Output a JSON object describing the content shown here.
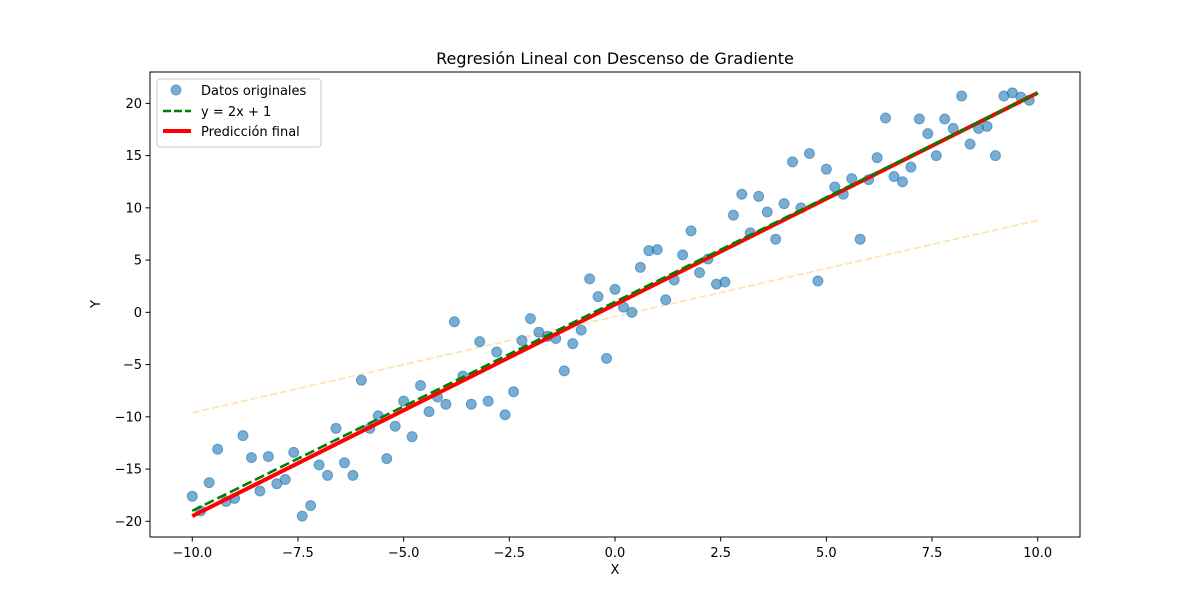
{
  "chart_data": {
    "type": "scatter",
    "title": "Regresión Lineal con Descenso de Gradiente",
    "xlabel": "X",
    "ylabel": "Y",
    "xlim": [
      -11.0,
      11.0
    ],
    "ylim": [
      -21.5,
      23.0
    ],
    "xticks": [
      -10.0,
      -7.5,
      -5.0,
      -2.5,
      0.0,
      2.5,
      5.0,
      7.5,
      10.0
    ],
    "xtick_labels": [
      "−10.0",
      "−7.5",
      "−5.0",
      "−2.5",
      "0.0",
      "2.5",
      "5.0",
      "7.5",
      "10.0"
    ],
    "yticks": [
      -20,
      -15,
      -10,
      -5,
      0,
      5,
      10,
      15,
      20
    ],
    "ytick_labels": [
      "−20",
      "−15",
      "−10",
      "−5",
      "0",
      "5",
      "10",
      "15",
      "20"
    ],
    "grid": false,
    "legend_position": "top-left",
    "colors": {
      "scatter": "#1f77b4",
      "true_line": "#007f00",
      "final_line": "#ff0000",
      "intermediate_line": "#ffa500"
    },
    "series": [
      {
        "name": "Datos originales",
        "kind": "scatter",
        "points": [
          [
            -10.0,
            -17.6
          ],
          [
            -9.8,
            -19.0
          ],
          [
            -9.6,
            -16.3
          ],
          [
            -9.4,
            -13.1
          ],
          [
            -9.2,
            -18.1
          ],
          [
            -9.0,
            -17.8
          ],
          [
            -8.8,
            -11.8
          ],
          [
            -8.6,
            -13.9
          ],
          [
            -8.4,
            -17.1
          ],
          [
            -8.2,
            -13.8
          ],
          [
            -8.0,
            -16.4
          ],
          [
            -7.8,
            -16.0
          ],
          [
            -7.6,
            -13.4
          ],
          [
            -7.4,
            -19.5
          ],
          [
            -7.2,
            -18.5
          ],
          [
            -7.0,
            -14.6
          ],
          [
            -6.8,
            -15.6
          ],
          [
            -6.6,
            -11.1
          ],
          [
            -6.4,
            -14.4
          ],
          [
            -6.2,
            -15.6
          ],
          [
            -6.0,
            -6.5
          ],
          [
            -5.8,
            -11.1
          ],
          [
            -5.6,
            -9.9
          ],
          [
            -5.4,
            -14.0
          ],
          [
            -5.2,
            -10.9
          ],
          [
            -5.0,
            -8.5
          ],
          [
            -4.8,
            -11.9
          ],
          [
            -4.6,
            -7.0
          ],
          [
            -4.4,
            -9.5
          ],
          [
            -4.2,
            -8.1
          ],
          [
            -4.0,
            -8.8
          ],
          [
            -3.8,
            -0.9
          ],
          [
            -3.6,
            -6.1
          ],
          [
            -3.4,
            -8.8
          ],
          [
            -3.2,
            -2.8
          ],
          [
            -3.0,
            -8.5
          ],
          [
            -2.8,
            -3.8
          ],
          [
            -2.6,
            -9.8
          ],
          [
            -2.4,
            -7.6
          ],
          [
            -2.2,
            -2.7
          ],
          [
            -2.0,
            -0.6
          ],
          [
            -1.8,
            -1.9
          ],
          [
            -1.6,
            -2.3
          ],
          [
            -1.4,
            -2.5
          ],
          [
            -1.2,
            -5.6
          ],
          [
            -1.0,
            -3.0
          ],
          [
            -0.8,
            -1.7
          ],
          [
            -0.6,
            3.2
          ],
          [
            -0.4,
            1.5
          ],
          [
            -0.2,
            -4.4
          ],
          [
            0.0,
            2.2
          ],
          [
            0.2,
            0.5
          ],
          [
            0.4,
            0.0
          ],
          [
            0.6,
            4.3
          ],
          [
            0.8,
            5.9
          ],
          [
            1.0,
            6.0
          ],
          [
            1.2,
            1.2
          ],
          [
            1.4,
            3.1
          ],
          [
            1.6,
            5.5
          ],
          [
            1.8,
            7.8
          ],
          [
            2.0,
            3.8
          ],
          [
            2.2,
            5.1
          ],
          [
            2.4,
            2.7
          ],
          [
            2.6,
            2.9
          ],
          [
            2.8,
            9.3
          ],
          [
            3.0,
            11.3
          ],
          [
            3.2,
            7.6
          ],
          [
            3.4,
            11.1
          ],
          [
            3.6,
            9.6
          ],
          [
            3.8,
            7.0
          ],
          [
            4.0,
            10.4
          ],
          [
            4.2,
            14.4
          ],
          [
            4.4,
            10.0
          ],
          [
            4.6,
            15.2
          ],
          [
            4.8,
            3.0
          ],
          [
            5.0,
            13.7
          ],
          [
            5.2,
            12.0
          ],
          [
            5.4,
            11.3
          ],
          [
            5.6,
            12.8
          ],
          [
            5.8,
            7.0
          ],
          [
            6.0,
            12.7
          ],
          [
            6.2,
            14.8
          ],
          [
            6.4,
            18.6
          ],
          [
            6.6,
            13.0
          ],
          [
            6.8,
            12.5
          ],
          [
            7.0,
            13.9
          ],
          [
            7.2,
            18.5
          ],
          [
            7.4,
            17.1
          ],
          [
            7.6,
            15.0
          ],
          [
            7.8,
            18.5
          ],
          [
            8.0,
            17.6
          ],
          [
            8.2,
            20.7
          ],
          [
            8.4,
            16.1
          ],
          [
            8.6,
            17.6
          ],
          [
            8.8,
            17.8
          ],
          [
            9.0,
            15.0
          ],
          [
            9.2,
            20.7
          ],
          [
            9.4,
            21.0
          ],
          [
            9.6,
            20.6
          ],
          [
            9.8,
            20.3
          ]
        ]
      },
      {
        "name": "y = 2x + 1",
        "kind": "line",
        "style": "dashed",
        "x": [
          -10.0,
          10.0
        ],
        "y": [
          -19.0,
          21.0
        ]
      },
      {
        "name": "Predicción final",
        "kind": "line",
        "style": "solid",
        "x": [
          -10.0,
          10.0
        ],
        "y": [
          -19.5,
          21.0
        ]
      },
      {
        "kind": "line",
        "style": "dashed-faint",
        "x": [
          -10.0,
          10.0
        ],
        "y": [
          -9.6,
          8.8
        ]
      }
    ]
  }
}
